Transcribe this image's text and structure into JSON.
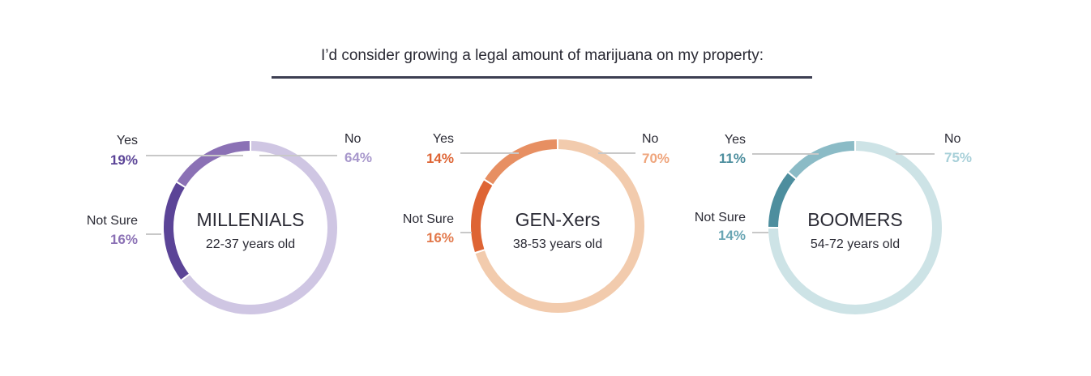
{
  "chart_data": {
    "type": "pie",
    "title": "I’d consider growing a legal amount of marijuana on my property:",
    "groups": [
      {
        "name": "MILLENIALS",
        "subtitle": "22-37 years old",
        "slices": [
          {
            "label": "No",
            "value": 64,
            "text": "64%",
            "color": "#cfc6e3"
          },
          {
            "label": "Yes",
            "value": 19,
            "text": "19%",
            "color": "#5b4497"
          },
          {
            "label": "Not Sure",
            "value": 16,
            "text": "16%",
            "color": "#8b71b5"
          }
        ],
        "pct_colors": {
          "No": "#a898cc",
          "Yes": "#5b4497",
          "Not Sure": "#8b71b5"
        }
      },
      {
        "name": "GEN-Xers",
        "subtitle": "38-53 years old",
        "slices": [
          {
            "label": "No",
            "value": 70,
            "text": "70%",
            "color": "#f2cbad"
          },
          {
            "label": "Yes",
            "value": 14,
            "text": "14%",
            "color": "#de6434"
          },
          {
            "label": "Not Sure",
            "value": 16,
            "text": "16%",
            "color": "#e78f62"
          }
        ],
        "pct_colors": {
          "No": "#efa57c",
          "Yes": "#de6434",
          "Not Sure": "#e2784a"
        }
      },
      {
        "name": "BOOMERS",
        "subtitle": "54-72 years old",
        "slices": [
          {
            "label": "No",
            "value": 75,
            "text": "75%",
            "color": "#cde3e6"
          },
          {
            "label": "Yes",
            "value": 11,
            "text": "11%",
            "color": "#4d8e9e"
          },
          {
            "label": "Not Sure",
            "value": 14,
            "text": "14%",
            "color": "#8bbbc6"
          }
        ],
        "pct_colors": {
          "No": "#a8d0d9",
          "Yes": "#4d8e9e",
          "Not Sure": "#6aa6b4"
        }
      }
    ]
  }
}
